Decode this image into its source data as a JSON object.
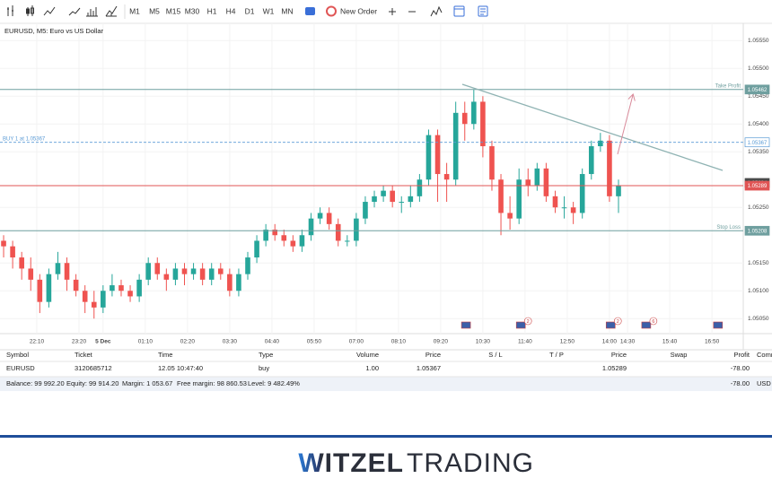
{
  "toolbar": {
    "timeframes": [
      "M1",
      "M5",
      "M15",
      "M30",
      "H1",
      "H4",
      "D1",
      "W1",
      "MN"
    ],
    "active_timeframe": "M5",
    "new_order": "New Order"
  },
  "chart_data": {
    "type": "candlestick",
    "title": "EURUSD, M5: Euro vs US Dollar",
    "x": [
      1275,
      1290,
      1305,
      1320,
      1335,
      1350,
      1365,
      1380,
      1395,
      1410,
      1425,
      1440,
      1455,
      1470,
      1485,
      1500,
      1515,
      1530,
      1545,
      1560,
      1575,
      1590,
      1605,
      1620,
      1635,
      1650,
      1665,
      1680,
      1695,
      1710,
      1725,
      1740,
      1755,
      1770,
      1785,
      1800,
      1815,
      1830,
      1845,
      1860,
      1875,
      1890,
      1905,
      1920,
      1935,
      1950,
      1965,
      1980,
      1995,
      2010,
      2025,
      2040,
      2055,
      2070,
      2085,
      2100,
      2115,
      2130,
      2145,
      2160,
      2175,
      2190,
      2205,
      2220,
      2235,
      2250,
      2265,
      2280,
      2295
    ],
    "open": [
      1.0519,
      1.0518,
      1.0516,
      1.0514,
      1.0512,
      1.0508,
      1.0513,
      1.0515,
      1.0512,
      1.051,
      1.0508,
      1.0507,
      1.051,
      1.0511,
      1.051,
      1.0509,
      1.0512,
      1.0515,
      1.0513,
      1.0512,
      1.0514,
      1.0513,
      1.0514,
      1.0512,
      1.0514,
      1.0513,
      1.051,
      1.0513,
      1.0516,
      1.0519,
      1.0521,
      1.052,
      1.0519,
      1.0518,
      1.052,
      1.0523,
      1.0524,
      1.0522,
      1.0519,
      1.0519,
      1.0523,
      1.0526,
      1.0527,
      1.0528,
      1.0526,
      1.0526,
      1.0527,
      1.053,
      1.0538,
      1.0531,
      1.053,
      1.0542,
      1.054,
      1.0544,
      1.0536,
      1.053,
      1.0524,
      1.0523,
      1.053,
      1.0529,
      1.0532,
      1.0527,
      1.0525,
      1.0525,
      1.0524,
      1.0531,
      1.0536,
      1.0537,
      1.0527
    ],
    "high": [
      1.052,
      1.0519,
      1.0517,
      1.0516,
      1.0513,
      1.0514,
      1.0517,
      1.0516,
      1.0513,
      1.0511,
      1.051,
      1.0511,
      1.0513,
      1.0512,
      1.0511,
      1.0513,
      1.0516,
      1.0516,
      1.0514,
      1.0515,
      1.0515,
      1.0515,
      1.0515,
      1.0515,
      1.0515,
      1.0514,
      1.0514,
      1.0517,
      1.052,
      1.0522,
      1.0522,
      1.0521,
      1.052,
      1.0521,
      1.0524,
      1.0525,
      1.0525,
      1.0523,
      1.052,
      1.0524,
      1.0527,
      1.0528,
      1.0529,
      1.0529,
      1.0527,
      1.0529,
      1.0531,
      1.0539,
      1.0539,
      1.0533,
      1.0544,
      1.0544,
      1.05462,
      1.0545,
      1.0537,
      1.0531,
      1.0527,
      1.0532,
      1.0532,
      1.0533,
      1.0533,
      1.0528,
      1.0527,
      1.0526,
      1.0532,
      1.0537,
      1.05384,
      1.0538,
      1.053
    ],
    "low": [
      1.0516,
      1.0514,
      1.0512,
      1.051,
      1.0506,
      1.0507,
      1.0512,
      1.051,
      1.0509,
      1.0506,
      1.0505,
      1.0506,
      1.0509,
      1.0509,
      1.0508,
      1.0508,
      1.0511,
      1.0512,
      1.051,
      1.0511,
      1.0511,
      1.0512,
      1.0511,
      1.0511,
      1.0512,
      1.0509,
      1.0509,
      1.0512,
      1.0515,
      1.0518,
      1.0519,
      1.0518,
      1.0517,
      1.0517,
      1.0519,
      1.0522,
      1.0521,
      1.0518,
      1.0518,
      1.0518,
      1.0522,
      1.0525,
      1.0526,
      1.0525,
      1.0524,
      1.0525,
      1.0526,
      1.0529,
      1.0526,
      1.0526,
      1.0529,
      1.0537,
      1.0539,
      1.0534,
      1.0528,
      1.052,
      1.0521,
      1.0522,
      1.0527,
      1.0528,
      1.0526,
      1.0524,
      1.0523,
      1.0522,
      1.0523,
      1.053,
      1.0535,
      1.0526,
      1.0524
    ],
    "close": [
      1.0518,
      1.0516,
      1.0514,
      1.0512,
      1.0508,
      1.0513,
      1.0515,
      1.0512,
      1.051,
      1.0508,
      1.0507,
      1.051,
      1.0511,
      1.051,
      1.0509,
      1.0512,
      1.0515,
      1.0513,
      1.0512,
      1.0514,
      1.0513,
      1.0514,
      1.0512,
      1.0514,
      1.0513,
      1.051,
      1.0513,
      1.0516,
      1.0519,
      1.0521,
      1.052,
      1.0519,
      1.0518,
      1.052,
      1.0523,
      1.0524,
      1.0522,
      1.0519,
      1.0519,
      1.0523,
      1.0526,
      1.0527,
      1.0528,
      1.0526,
      1.0526,
      1.0527,
      1.053,
      1.0538,
      1.0531,
      1.053,
      1.0542,
      1.054,
      1.0544,
      1.0536,
      1.053,
      1.0524,
      1.0523,
      1.053,
      1.0529,
      1.0532,
      1.0527,
      1.0525,
      1.0525,
      1.0524,
      1.0531,
      1.0536,
      1.0537,
      1.0527,
      1.05289
    ],
    "up_color": "#26a69a",
    "down_color": "#ef5350",
    "xlim": [
      1269,
      2502
    ],
    "ylim": [
      1.05023,
      1.05581
    ],
    "xticks": [
      {
        "value": 1330,
        "label": "22:10"
      },
      {
        "value": 1400,
        "label": "23:20"
      },
      {
        "value": 1440,
        "label": "5 Dec"
      },
      {
        "value": 1510,
        "label": "01:10"
      },
      {
        "value": 1580,
        "label": "02:20"
      },
      {
        "value": 1650,
        "label": "03:30"
      },
      {
        "value": 1720,
        "label": "04:40"
      },
      {
        "value": 1790,
        "label": "05:50"
      },
      {
        "value": 1860,
        "label": "07:00"
      },
      {
        "value": 1930,
        "label": "08:10"
      },
      {
        "value": 2000,
        "label": "09:20"
      },
      {
        "value": 2070,
        "label": "10:30"
      },
      {
        "value": 2140,
        "label": "11:40"
      },
      {
        "value": 2210,
        "label": "12:50"
      },
      {
        "value": 2280,
        "label": "14:00"
      },
      {
        "value": 2310,
        "label": "14:30"
      },
      {
        "value": 2380,
        "label": "15:40"
      },
      {
        "value": 2450,
        "label": "16:50"
      }
    ],
    "yticks": [
      {
        "value": 1.0555,
        "label": "1.05550"
      },
      {
        "value": 1.055,
        "label": "1.05500"
      },
      {
        "value": 1.0545,
        "label": "1.05450"
      },
      {
        "value": 1.054,
        "label": "1.05400"
      },
      {
        "value": 1.0535,
        "label": "1.05350"
      },
      {
        "value": 1.0525,
        "label": "1.05250"
      },
      {
        "value": 1.0515,
        "label": "1.05150"
      },
      {
        "value": 1.051,
        "label": "1.05100"
      },
      {
        "value": 1.0505,
        "label": "1.05050"
      }
    ],
    "grid": true,
    "price_lines": [
      {
        "value": 1.05462,
        "label": "Take Profit",
        "label_side": "right",
        "color": "#6f9f9f",
        "style": "solid"
      },
      {
        "value": 1.05367,
        "label": "BUY 1 at 1.05367",
        "label_side": "left",
        "color": "#5b9bd5",
        "style": "dashed"
      },
      {
        "value": 1.05294,
        "color": "#4a4a4a",
        "style": "none"
      },
      {
        "value": 1.05289,
        "color": "#e05555",
        "style": "solid"
      },
      {
        "value": 1.05208,
        "label": "Stop Loss",
        "label_side": "right",
        "color": "#6f9f9f",
        "style": "solid"
      }
    ],
    "events": [
      {
        "x": 2042
      },
      {
        "x": 2133,
        "count": 2
      },
      {
        "x": 2282,
        "count": 2
      },
      {
        "x": 2341,
        "count": 6
      },
      {
        "x": 2460
      }
    ]
  },
  "positions": {
    "columns": [
      "Symbol",
      "Ticket",
      "Time",
      "Type",
      "Volume",
      "Price",
      "S / L",
      "T / P",
      "Price",
      "Swap",
      "Profit",
      "Comm"
    ],
    "rows": [
      [
        "EURUSD",
        "3120685712",
        "12.05 10:47:40",
        "buy",
        "1.00",
        "1.05367",
        null,
        null,
        "1.05289",
        null,
        "-78.00",
        null
      ]
    ]
  },
  "account": {
    "items": [
      "Balance: 99 992.20",
      "Equity: 99 914.20",
      "Margin: 1 053.67",
      "Free margin: 98 860.53",
      "Level: 9 482.49%"
    ],
    "profit": "-78.00",
    "currency": "USD"
  },
  "footer": {
    "brand_bold": "WITZEL",
    "brand_light": "TRADING"
  }
}
